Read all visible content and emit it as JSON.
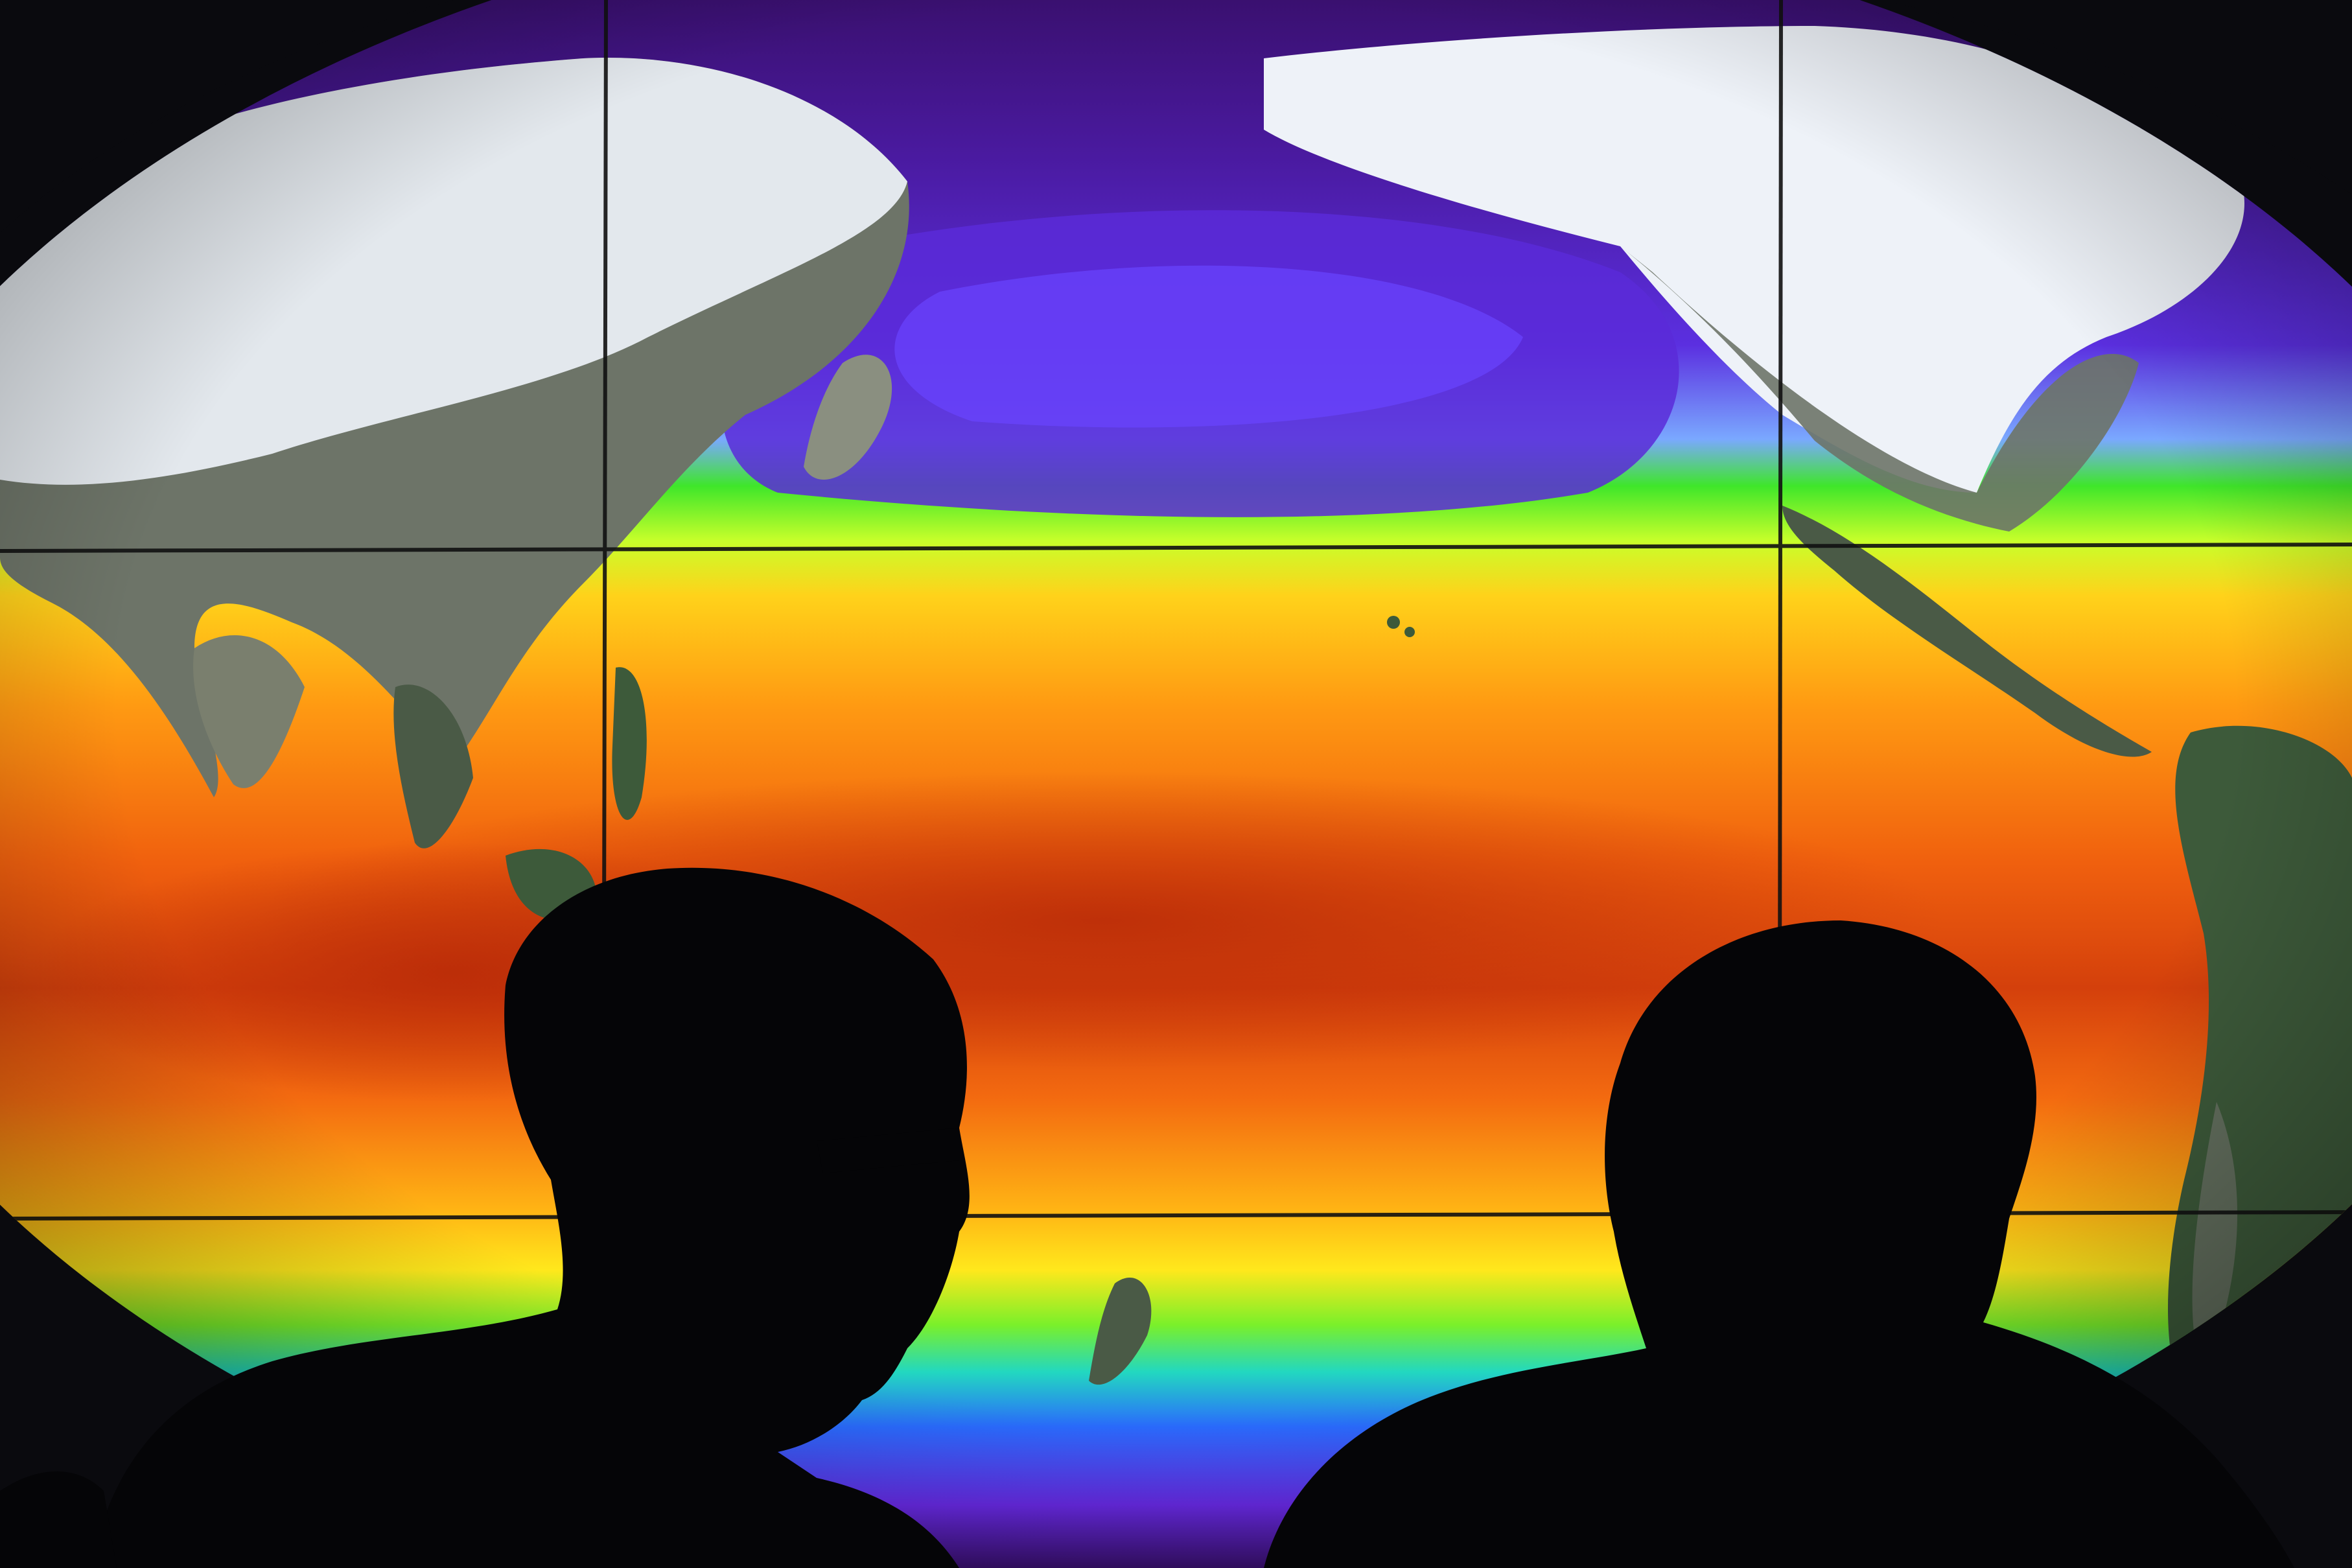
{
  "scene": {
    "subject": "sea-surface-temperature-map-display",
    "viewers": 2
  },
  "palette": {
    "background": "#0a0a0e",
    "warm_core": "#c8300a",
    "warm_orange": "#f36a10",
    "warm_yellow": "#ffd21a",
    "mid_green": "#3fe62a",
    "cool_blue": "#2a6bff",
    "cold_violet": "#5b1ec8",
    "deep_violet": "#3a1070",
    "ice_white": "#eef2f8",
    "land_gray": "#6d7468",
    "land_green": "#3d5a3a",
    "silhouette": "#050507"
  }
}
